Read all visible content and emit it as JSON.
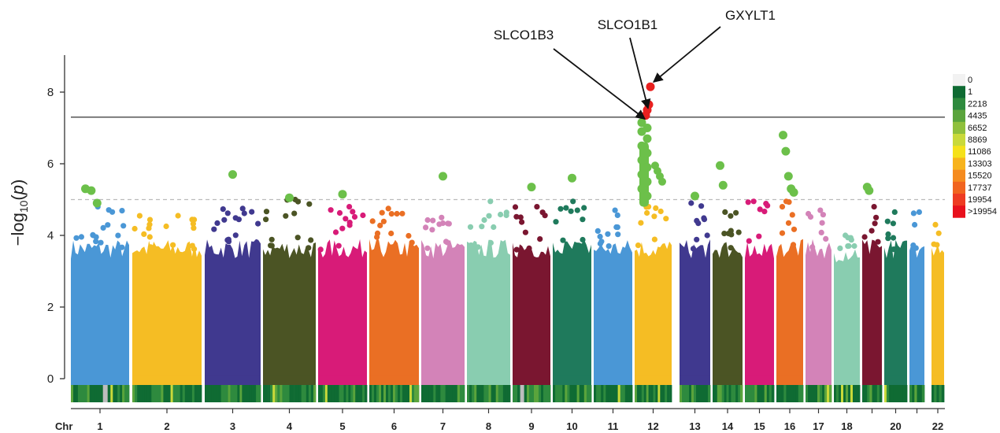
{
  "chart_data": {
    "type": "scatter",
    "title": "",
    "xlabel": "Chr",
    "ylabel": "-log10(p)",
    "ylim": [
      0,
      9
    ],
    "yticks": [
      0,
      2,
      4,
      6,
      8
    ],
    "thresholds": [
      {
        "name": "genome-wide",
        "value": 7.3,
        "style": "solid",
        "color": "#444444"
      },
      {
        "name": "suggestive",
        "value": 5.0,
        "style": "dashed",
        "color": "#bbbbbb"
      }
    ],
    "chromosomes": [
      {
        "label": "1",
        "show_label": true,
        "color": "#4a97d6",
        "range": [
          0.09,
          0.164
        ],
        "max": 4.8
      },
      {
        "label": "2",
        "show_label": true,
        "color": "#f5bd24",
        "range": [
          0.168,
          0.256
        ],
        "max": 4.55
      },
      {
        "label": "3",
        "show_label": true,
        "color": "#40398f",
        "range": [
          0.26,
          0.331
        ],
        "max": 4.75
      },
      {
        "label": "4",
        "show_label": true,
        "color": "#4b5424",
        "range": [
          0.334,
          0.401
        ],
        "max": 5.0
      },
      {
        "label": "5",
        "show_label": true,
        "color": "#d81b78",
        "range": [
          0.404,
          0.466
        ],
        "max": 4.8
      },
      {
        "label": "6",
        "show_label": true,
        "color": "#ea6f24",
        "range": [
          0.469,
          0.532
        ],
        "max": 4.75
      },
      {
        "label": "7",
        "show_label": true,
        "color": "#d383b8",
        "range": [
          0.535,
          0.59
        ],
        "max": 4.5
      },
      {
        "label": "8",
        "show_label": true,
        "color": "#89cdb0",
        "range": [
          0.593,
          0.648
        ],
        "max": 4.95
      },
      {
        "label": "9",
        "show_label": true,
        "color": "#7a1630",
        "range": [
          0.651,
          0.699
        ],
        "max": 4.8
      },
      {
        "label": "10",
        "show_label": true,
        "color": "#1f7a5c",
        "range": [
          0.702,
          0.751
        ],
        "max": 4.95
      },
      {
        "label": "11",
        "show_label": true,
        "color": "#4a97d6",
        "range": [
          0.754,
          0.803
        ],
        "max": 4.7
      },
      {
        "label": "12",
        "show_label": true,
        "color": "#f5bd24",
        "range": [
          0.806,
          0.853
        ],
        "max": 4.8
      },
      {
        "label": "13",
        "show_label": true,
        "color": "#40398f",
        "range": [
          0.863,
          0.902
        ],
        "max": 4.9
      },
      {
        "label": "14",
        "show_label": true,
        "color": "#4b5424",
        "range": [
          0.905,
          0.943
        ],
        "max": 4.65
      },
      {
        "label": "15",
        "show_label": true,
        "color": "#d81b78",
        "range": [
          0.946,
          0.983
        ],
        "max": 4.95
      },
      {
        "label": "16",
        "show_label": true,
        "color": "#ea6f24",
        "range": [
          0.986,
          1.02
        ],
        "max": 4.95
      },
      {
        "label": "17",
        "show_label": true,
        "color": "#d383b8",
        "range": [
          1.023,
          1.056
        ],
        "max": 4.7
      },
      {
        "label": "18",
        "show_label": true,
        "color": "#89cdb0",
        "range": [
          1.059,
          1.092
        ],
        "max": 4.0
      },
      {
        "label": "19",
        "show_label": false,
        "color": "#7a1630",
        "range": [
          1.095,
          1.12
        ],
        "max": 4.8
      },
      {
        "label": "20",
        "show_label": true,
        "color": "#1f7a5c",
        "range": [
          1.123,
          1.152
        ],
        "max": 4.65
      },
      {
        "label": "21",
        "show_label": false,
        "color": "#4a97d6",
        "range": [
          1.155,
          1.174
        ],
        "max": 4.65
      },
      {
        "label": "22",
        "show_label": true,
        "color": "#f5bd24",
        "range": [
          1.183,
          1.199
        ],
        "max": 4.3
      }
    ],
    "highlight_points": [
      {
        "chr": "1",
        "values": [
          5.3,
          5.25,
          4.9
        ]
      },
      {
        "chr": "3",
        "values": [
          5.7
        ]
      },
      {
        "chr": "4",
        "values": [
          5.05
        ]
      },
      {
        "chr": "5",
        "values": [
          5.15
        ]
      },
      {
        "chr": "7",
        "values": [
          5.65
        ]
      },
      {
        "chr": "9",
        "values": [
          5.35
        ]
      },
      {
        "chr": "10",
        "values": [
          5.6
        ]
      },
      {
        "chr": "12",
        "values": [
          7.15,
          7.0,
          6.9,
          6.7,
          6.5,
          6.3,
          6.1,
          5.9,
          5.7,
          5.5,
          5.3,
          5.1
        ]
      },
      {
        "chr": "13",
        "values": [
          5.1
        ]
      },
      {
        "chr": "14",
        "values": [
          5.95,
          5.4
        ]
      },
      {
        "chr": "16",
        "values": [
          6.8,
          6.35,
          5.65,
          5.3,
          5.2
        ]
      },
      {
        "chr": "19",
        "values": [
          5.35,
          5.25
        ]
      }
    ],
    "significant_points": [
      {
        "chr": "12",
        "value": 8.15
      },
      {
        "chr": "12",
        "value": 7.65
      },
      {
        "chr": "12",
        "value": 7.5
      },
      {
        "chr": "12",
        "value": 7.35
      }
    ],
    "annotations": [
      {
        "text": "SLCO1B3",
        "point_value": 7.25
      },
      {
        "text": "SLCO1B1",
        "point_value": 7.5
      },
      {
        "text": "GXYLT1",
        "point_value": 8.15
      }
    ],
    "density_legend": {
      "labels": [
        "0",
        "1",
        "2218",
        "4435",
        "6652",
        "8869",
        "11086",
        "13303",
        "15520",
        "17737",
        "19954",
        ">19954"
      ],
      "colors": [
        "#f2f2f2",
        "#0f6b33",
        "#2e8a3e",
        "#5aa43c",
        "#8fc03c",
        "#c9d93a",
        "#f5e11a",
        "#f7b31c",
        "#f58b1f",
        "#f1641f",
        "#ee3b22",
        "#e8101c"
      ]
    },
    "highlight_color": "#6cc04a",
    "significant_color": "#e8201f"
  }
}
